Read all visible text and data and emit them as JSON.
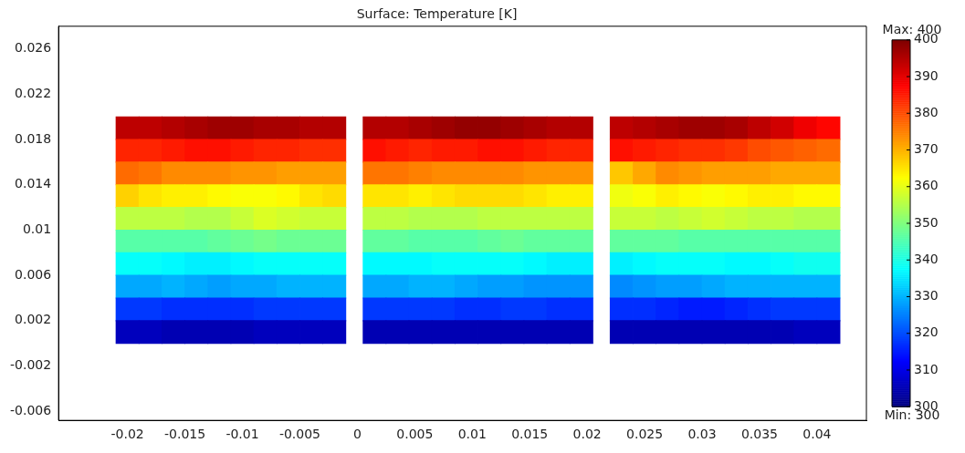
{
  "chart_data": {
    "type": "scatter",
    "title": "Surface: Temperature [K]",
    "marker": "square",
    "grid": false,
    "x": [
      -0.02,
      -0.018,
      -0.016,
      -0.014,
      -0.012,
      -0.01,
      -0.008,
      -0.006,
      -0.004,
      -0.002,
      0.0015,
      0.0035,
      0.0055,
      0.0075,
      0.0095,
      0.0115,
      0.0135,
      0.0155,
      0.0175,
      0.0195,
      0.023,
      0.025,
      0.027,
      0.029,
      0.031,
      0.033,
      0.035,
      0.037,
      0.039,
      0.041,
      -0.02,
      -0.018,
      -0.016,
      -0.014,
      -0.012,
      -0.01,
      -0.008,
      -0.006,
      -0.004,
      -0.002,
      0.0015,
      0.0035,
      0.0055,
      0.0075,
      0.0095,
      0.0115,
      0.0135,
      0.0155,
      0.0175,
      0.0195,
      0.023,
      0.025,
      0.027,
      0.029,
      0.031,
      0.033,
      0.035,
      0.037,
      0.039,
      0.041,
      -0.02,
      -0.018,
      -0.016,
      -0.014,
      -0.012,
      -0.01,
      -0.008,
      -0.006,
      -0.004,
      -0.002,
      0.0015,
      0.0035,
      0.0055,
      0.0075,
      0.0095,
      0.0115,
      0.0135,
      0.0155,
      0.0175,
      0.0195,
      0.023,
      0.025,
      0.027,
      0.029,
      0.031,
      0.033,
      0.035,
      0.037,
      0.039,
      0.041,
      -0.02,
      -0.018,
      -0.016,
      -0.014,
      -0.012,
      -0.01,
      -0.008,
      -0.006,
      -0.004,
      -0.002,
      0.0015,
      0.0035,
      0.0055,
      0.0075,
      0.0095,
      0.0115,
      0.0135,
      0.0155,
      0.0175,
      0.0195,
      0.023,
      0.025,
      0.027,
      0.029,
      0.031,
      0.033,
      0.035,
      0.037,
      0.039,
      0.041,
      -0.02,
      -0.018,
      -0.016,
      -0.014,
      -0.012,
      -0.01,
      -0.008,
      -0.006,
      -0.004,
      -0.002,
      0.0015,
      0.0035,
      0.0055,
      0.0075,
      0.0095,
      0.0115,
      0.0135,
      0.0155,
      0.0175,
      0.0195,
      0.023,
      0.025,
      0.027,
      0.029,
      0.031,
      0.033,
      0.035,
      0.037,
      0.039,
      0.041,
      -0.02,
      -0.018,
      -0.016,
      -0.014,
      -0.012,
      -0.01,
      -0.008,
      -0.006,
      -0.004,
      -0.002,
      0.0015,
      0.0035,
      0.0055,
      0.0075,
      0.0095,
      0.0115,
      0.0135,
      0.0155,
      0.0175,
      0.0195,
      0.023,
      0.025,
      0.027,
      0.029,
      0.031,
      0.033,
      0.035,
      0.037,
      0.039,
      0.041,
      -0.02,
      -0.018,
      -0.016,
      -0.014,
      -0.012,
      -0.01,
      -0.008,
      -0.006,
      -0.004,
      -0.002,
      0.0015,
      0.0035,
      0.0055,
      0.0075,
      0.0095,
      0.0115,
      0.0135,
      0.0155,
      0.0175,
      0.0195,
      0.023,
      0.025,
      0.027,
      0.029,
      0.031,
      0.033,
      0.035,
      0.037,
      0.039,
      0.041,
      -0.02,
      -0.018,
      -0.016,
      -0.014,
      -0.012,
      -0.01,
      -0.008,
      -0.006,
      -0.004,
      -0.002,
      0.0015,
      0.0035,
      0.0055,
      0.0075,
      0.0095,
      0.0115,
      0.0135,
      0.0155,
      0.0175,
      0.0195,
      0.023,
      0.025,
      0.027,
      0.029,
      0.031,
      0.033,
      0.035,
      0.037,
      0.039,
      0.041,
      -0.02,
      -0.018,
      -0.016,
      -0.014,
      -0.012,
      -0.01,
      -0.008,
      -0.006,
      -0.004,
      -0.002,
      0.0015,
      0.0035,
      0.0055,
      0.0075,
      0.0095,
      0.0115,
      0.0135,
      0.0155,
      0.0175,
      0.0195,
      0.023,
      0.025,
      0.027,
      0.029,
      0.031,
      0.033,
      0.035,
      0.037,
      0.039,
      0.041,
      -0.02,
      -0.018,
      -0.016,
      -0.014,
      -0.012,
      -0.01,
      -0.008,
      -0.006,
      -0.004,
      -0.002,
      0.0015,
      0.0035,
      0.0055,
      0.0075,
      0.0095,
      0.0115,
      0.0135,
      0.0155,
      0.0175,
      0.0195,
      0.023,
      0.025,
      0.027,
      0.029,
      0.031,
      0.033,
      0.035,
      0.037,
      0.039,
      0.041
    ],
    "values": [
      0.019,
      0.019,
      0.019,
      0.019,
      0.019,
      0.019,
      0.019,
      0.019,
      0.019,
      0.019,
      0.019,
      0.019,
      0.019,
      0.019,
      0.019,
      0.019,
      0.019,
      0.019,
      0.019,
      0.019,
      0.019,
      0.019,
      0.019,
      0.019,
      0.019,
      0.019,
      0.019,
      0.019,
      0.019,
      0.019,
      0.017,
      0.017,
      0.017,
      0.017,
      0.017,
      0.017,
      0.017,
      0.017,
      0.017,
      0.017,
      0.017,
      0.017,
      0.017,
      0.017,
      0.017,
      0.017,
      0.017,
      0.017,
      0.017,
      0.017,
      0.017,
      0.017,
      0.017,
      0.017,
      0.017,
      0.017,
      0.017,
      0.017,
      0.017,
      0.017,
      0.015,
      0.015,
      0.015,
      0.015,
      0.015,
      0.015,
      0.015,
      0.015,
      0.015,
      0.015,
      0.015,
      0.015,
      0.015,
      0.015,
      0.015,
      0.015,
      0.015,
      0.015,
      0.015,
      0.015,
      0.015,
      0.015,
      0.015,
      0.015,
      0.015,
      0.015,
      0.015,
      0.015,
      0.015,
      0.015,
      0.013,
      0.013,
      0.013,
      0.013,
      0.013,
      0.013,
      0.013,
      0.013,
      0.013,
      0.013,
      0.013,
      0.013,
      0.013,
      0.013,
      0.013,
      0.013,
      0.013,
      0.013,
      0.013,
      0.013,
      0.013,
      0.013,
      0.013,
      0.013,
      0.013,
      0.013,
      0.013,
      0.013,
      0.013,
      0.013,
      0.011,
      0.011,
      0.011,
      0.011,
      0.011,
      0.011,
      0.011,
      0.011,
      0.011,
      0.011,
      0.011,
      0.011,
      0.011,
      0.011,
      0.011,
      0.011,
      0.011,
      0.011,
      0.011,
      0.011,
      0.011,
      0.011,
      0.011,
      0.011,
      0.011,
      0.011,
      0.011,
      0.011,
      0.011,
      0.011,
      0.009,
      0.009,
      0.009,
      0.009,
      0.009,
      0.009,
      0.009,
      0.009,
      0.009,
      0.009,
      0.009,
      0.009,
      0.009,
      0.009,
      0.009,
      0.009,
      0.009,
      0.009,
      0.009,
      0.009,
      0.009,
      0.009,
      0.009,
      0.009,
      0.009,
      0.009,
      0.009,
      0.009,
      0.009,
      0.009,
      0.007,
      0.007,
      0.007,
      0.007,
      0.007,
      0.007,
      0.007,
      0.007,
      0.007,
      0.007,
      0.007,
      0.007,
      0.007,
      0.007,
      0.007,
      0.007,
      0.007,
      0.007,
      0.007,
      0.007,
      0.007,
      0.007,
      0.007,
      0.007,
      0.007,
      0.007,
      0.007,
      0.007,
      0.007,
      0.007,
      0.005,
      0.005,
      0.005,
      0.005,
      0.005,
      0.005,
      0.005,
      0.005,
      0.005,
      0.005,
      0.005,
      0.005,
      0.005,
      0.005,
      0.005,
      0.005,
      0.005,
      0.005,
      0.005,
      0.005,
      0.005,
      0.005,
      0.005,
      0.005,
      0.005,
      0.005,
      0.005,
      0.005,
      0.005,
      0.005,
      0.003,
      0.003,
      0.003,
      0.003,
      0.003,
      0.003,
      0.003,
      0.003,
      0.003,
      0.003,
      0.003,
      0.003,
      0.003,
      0.003,
      0.003,
      0.003,
      0.003,
      0.003,
      0.003,
      0.003,
      0.003,
      0.003,
      0.003,
      0.003,
      0.003,
      0.003,
      0.003,
      0.003,
      0.003,
      0.003,
      0.001,
      0.001,
      0.001,
      0.001,
      0.001,
      0.001,
      0.001,
      0.001,
      0.001,
      0.001,
      0.001,
      0.001,
      0.001,
      0.001,
      0.001,
      0.001,
      0.001,
      0.001,
      0.001,
      0.001,
      0.001,
      0.001,
      0.001,
      0.001,
      0.001,
      0.001,
      0.001,
      0.001,
      0.001,
      0.001
    ],
    "cvalues": [
      394,
      394,
      395,
      396,
      397,
      397,
      396,
      396,
      395,
      395,
      395,
      395,
      396,
      397,
      398,
      398,
      397,
      396,
      395,
      395,
      394,
      395,
      396,
      397,
      397,
      396,
      394,
      392,
      389,
      387,
      384,
      384,
      385,
      386,
      386,
      385,
      384,
      384,
      383,
      383,
      386,
      385,
      384,
      385,
      385,
      386,
      386,
      385,
      384,
      384,
      386,
      385,
      384,
      383,
      383,
      382,
      380,
      379,
      378,
      377,
      377,
      376,
      374,
      374,
      374,
      373,
      373,
      372,
      372,
      372,
      376,
      376,
      375,
      374,
      374,
      374,
      374,
      373,
      373,
      373,
      368,
      371,
      374,
      373,
      372,
      372,
      372,
      371,
      371,
      371,
      367,
      365,
      364,
      364,
      363,
      362,
      362,
      363,
      365,
      366,
      365,
      365,
      364,
      365,
      366,
      366,
      366,
      365,
      364,
      364,
      361,
      362,
      364,
      363,
      362,
      363,
      364,
      364,
      363,
      363,
      356,
      356,
      356,
      355,
      355,
      357,
      359,
      358,
      357,
      357,
      356,
      356,
      355,
      355,
      355,
      356,
      356,
      356,
      356,
      356,
      357,
      357,
      356,
      357,
      358,
      357,
      356,
      356,
      355,
      355,
      346,
      346,
      346,
      346,
      347,
      348,
      349,
      348,
      348,
      348,
      347,
      347,
      346,
      346,
      346,
      347,
      348,
      347,
      347,
      347,
      347,
      347,
      347,
      346,
      346,
      346,
      346,
      346,
      346,
      346,
      338,
      338,
      337,
      336,
      336,
      337,
      338,
      338,
      338,
      338,
      337,
      337,
      337,
      338,
      338,
      338,
      338,
      337,
      336,
      336,
      336,
      337,
      338,
      338,
      338,
      337,
      337,
      338,
      339,
      339,
      329,
      329,
      330,
      329,
      328,
      329,
      329,
      330,
      330,
      330,
      329,
      329,
      330,
      330,
      329,
      328,
      328,
      327,
      327,
      327,
      326,
      327,
      328,
      328,
      329,
      330,
      330,
      330,
      330,
      330,
      318,
      318,
      317,
      317,
      317,
      317,
      318,
      318,
      318,
      318,
      318,
      318,
      318,
      318,
      317,
      317,
      318,
      318,
      317,
      317,
      317,
      317,
      316,
      315,
      315,
      316,
      317,
      318,
      318,
      318,
      306,
      306,
      305,
      305,
      305,
      305,
      306,
      306,
      306,
      306,
      305,
      305,
      305,
      305,
      305,
      305,
      305,
      305,
      305,
      305,
      305,
      305,
      305,
      305,
      305,
      305,
      305,
      305,
      306,
      306
    ],
    "xlim": [
      -0.026,
      0.0443
    ],
    "xticks": [
      -0.02,
      -0.015,
      -0.01,
      -0.005,
      0,
      0.005,
      0.01,
      0.015,
      0.02,
      0.025,
      0.03,
      0.035,
      0.04
    ],
    "ylim": [
      -0.0068,
      0.028
    ],
    "yticks": [
      -0.006,
      -0.002,
      0.002,
      0.006,
      0.01,
      0.014,
      0.018,
      0.022,
      0.026
    ],
    "clim": [
      300,
      400
    ],
    "cticks": [
      300,
      310,
      320,
      330,
      340,
      350,
      360,
      370,
      380,
      390,
      400
    ],
    "annotations": [
      "Max: 400",
      "Min: 300"
    ]
  }
}
